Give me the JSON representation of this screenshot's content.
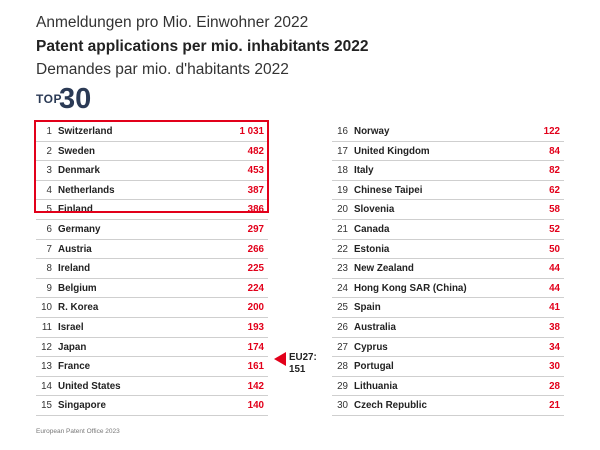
{
  "titles": {
    "de": "Anmeldungen pro Mio. Einwohner 2022",
    "en": "Patent applications per mio. inhabitants 2022",
    "fr": "Demandes par mio. d'habitants 2022"
  },
  "badge": {
    "prefix": "TOP",
    "number": "30"
  },
  "colors": {
    "accent": "#e2001a",
    "badge": "#2b3a55",
    "rule": "#cfcfcf"
  },
  "eu_marker": {
    "label": "EU27:",
    "value": "151"
  },
  "footer": "European Patent Office 2023",
  "chart_data": {
    "type": "table",
    "title": "Patent applications per mio. inhabitants 2022",
    "highlight_top_n": 5,
    "reference": {
      "name": "EU27",
      "value": 151,
      "display": "151"
    },
    "rows": [
      {
        "rank": "1",
        "country": "Switzerland",
        "display": "1 031",
        "value": 1031
      },
      {
        "rank": "2",
        "country": "Sweden",
        "display": "482",
        "value": 482
      },
      {
        "rank": "3",
        "country": "Denmark",
        "display": "453",
        "value": 453
      },
      {
        "rank": "4",
        "country": "Netherlands",
        "display": "387",
        "value": 387
      },
      {
        "rank": "5",
        "country": "Finland",
        "display": "386",
        "value": 386
      },
      {
        "rank": "6",
        "country": "Germany",
        "display": "297",
        "value": 297
      },
      {
        "rank": "7",
        "country": "Austria",
        "display": "266",
        "value": 266
      },
      {
        "rank": "8",
        "country": "Ireland",
        "display": "225",
        "value": 225
      },
      {
        "rank": "9",
        "country": "Belgium",
        "display": "224",
        "value": 224
      },
      {
        "rank": "10",
        "country": "R. Korea",
        "display": "200",
        "value": 200
      },
      {
        "rank": "11",
        "country": "Israel",
        "display": "193",
        "value": 193
      },
      {
        "rank": "12",
        "country": "Japan",
        "display": "174",
        "value": 174
      },
      {
        "rank": "13",
        "country": "France",
        "display": "161",
        "value": 161
      },
      {
        "rank": "14",
        "country": "United States",
        "display": "142",
        "value": 142
      },
      {
        "rank": "15",
        "country": "Singapore",
        "display": "140",
        "value": 140
      },
      {
        "rank": "16",
        "country": "Norway",
        "display": "122",
        "value": 122
      },
      {
        "rank": "17",
        "country": "United Kingdom",
        "display": "84",
        "value": 84
      },
      {
        "rank": "18",
        "country": "Italy",
        "display": "82",
        "value": 82
      },
      {
        "rank": "19",
        "country": "Chinese Taipei",
        "display": "62",
        "value": 62
      },
      {
        "rank": "20",
        "country": "Slovenia",
        "display": "58",
        "value": 58
      },
      {
        "rank": "21",
        "country": "Canada",
        "display": "52",
        "value": 52
      },
      {
        "rank": "22",
        "country": "Estonia",
        "display": "50",
        "value": 50
      },
      {
        "rank": "23",
        "country": "New Zealand",
        "display": "44",
        "value": 44
      },
      {
        "rank": "24",
        "country": "Hong Kong SAR (China)",
        "display": "44",
        "value": 44
      },
      {
        "rank": "25",
        "country": "Spain",
        "display": "41",
        "value": 41
      },
      {
        "rank": "26",
        "country": "Australia",
        "display": "38",
        "value": 38
      },
      {
        "rank": "27",
        "country": "Cyprus",
        "display": "34",
        "value": 34
      },
      {
        "rank": "28",
        "country": "Portugal",
        "display": "30",
        "value": 30
      },
      {
        "rank": "29",
        "country": "Lithuania",
        "display": "28",
        "value": 28
      },
      {
        "rank": "30",
        "country": "Czech Republic",
        "display": "21",
        "value": 21
      }
    ]
  }
}
